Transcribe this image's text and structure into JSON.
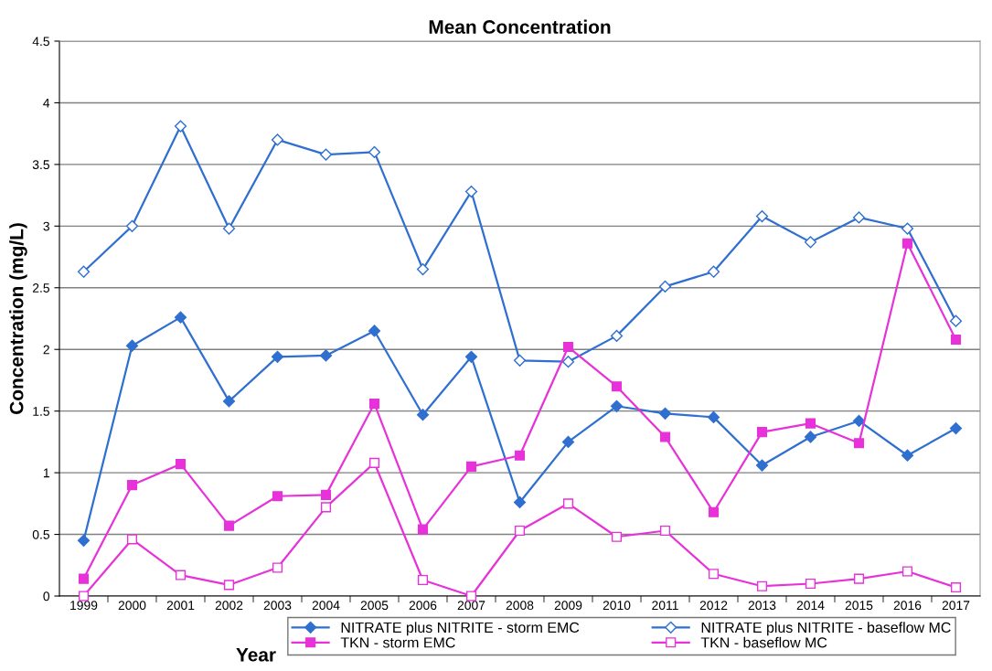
{
  "chart_data": {
    "type": "line",
    "title": "Mean Concentration",
    "xlabel": "Year",
    "ylabel": "Concentration (mg/L)",
    "categories": [
      "1999",
      "2000",
      "2001",
      "2002",
      "2003",
      "2004",
      "2005",
      "2006",
      "2007",
      "2008",
      "2009",
      "2010",
      "2011",
      "2012",
      "2013",
      "2014",
      "2015",
      "2016",
      "2017"
    ],
    "series": [
      {
        "name": "NITRATE plus NITRITE - storm EMC",
        "color": "#2f6fd0",
        "marker": "diamond",
        "values": [
          0.45,
          2.03,
          2.26,
          1.58,
          1.94,
          1.95,
          2.15,
          1.47,
          1.94,
          0.76,
          1.25,
          1.54,
          1.48,
          1.45,
          1.06,
          1.29,
          1.42,
          1.14,
          1.36
        ]
      },
      {
        "name": "NITRATE plus NITRITE - baseflow MC",
        "color": "#2f6fd0",
        "marker": "diamond",
        "values": [
          2.63,
          3.0,
          3.81,
          2.98,
          3.7,
          3.58,
          3.6,
          2.65,
          3.28,
          1.91,
          1.9,
          2.11,
          2.51,
          2.63,
          3.08,
          2.87,
          3.07,
          2.98,
          2.23
        ]
      },
      {
        "name": "TKN - storm EMC",
        "color": "#e632d8",
        "marker": "square",
        "values": [
          0.14,
          0.9,
          1.07,
          0.57,
          0.81,
          0.82,
          1.56,
          0.54,
          1.05,
          1.14,
          2.02,
          1.7,
          1.29,
          0.68,
          1.33,
          1.4,
          1.24,
          2.86,
          2.08
        ]
      },
      {
        "name": "TKN - baseflow MC",
        "color": "#e632d8",
        "marker": "square",
        "values": [
          0.0,
          0.46,
          0.17,
          0.09,
          0.23,
          0.72,
          1.08,
          0.13,
          0.0,
          0.53,
          0.75,
          0.48,
          0.53,
          0.18,
          0.08,
          0.1,
          0.14,
          0.2,
          0.07
        ]
      }
    ],
    "ylim": [
      0,
      4.5
    ],
    "yticks": [
      0,
      0.5,
      1,
      1.5,
      2,
      2.5,
      3,
      3.5,
      4,
      4.5
    ],
    "grid": "y",
    "legend": "bottom",
    "line_style": "solid"
  }
}
